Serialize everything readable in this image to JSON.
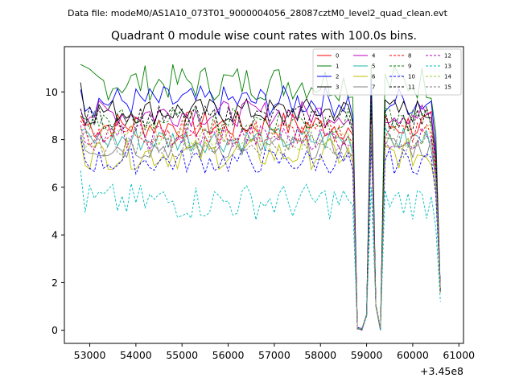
{
  "suptitle": "Data file: modeM0/AS1A10_073T01_9000004056_28087cztM0_level2_quad_clean.evt",
  "chart_data": {
    "type": "line",
    "title": "Quadrant 0 module wise count rates with 100.0s bins.",
    "xlabel": "",
    "ylabel": "",
    "x_offset_label": "+3.45e8",
    "xlim": [
      52450,
      61100
    ],
    "ylim": [
      -0.55,
      11.9
    ],
    "x_ticks": [
      53000,
      54000,
      55000,
      56000,
      57000,
      58000,
      59000,
      60000,
      61000
    ],
    "x_tick_labels": [
      "53000",
      "54000",
      "55000",
      "56000",
      "57000",
      "58000",
      "59000",
      "60000",
      "61000"
    ],
    "y_ticks": [
      0,
      2,
      4,
      6,
      8,
      10
    ],
    "y_tick_labels": [
      "0",
      "2",
      "4",
      "6",
      "8",
      "10"
    ],
    "x_start": 52800,
    "x_step": 100,
    "n_points": 79,
    "dip_indices": [
      59,
      60,
      61,
      62,
      63,
      64,
      65
    ],
    "dip_profile": [
      8.5,
      0.05,
      0.0,
      0.6,
      9.8,
      1.0,
      0.0
    ],
    "legend_location": "upper right",
    "series": [
      {
        "name": "0",
        "color": "#ff0000",
        "dash": "solid",
        "base": 8.6,
        "amp": 0.28,
        "start": 9.0,
        "end": 1.6
      },
      {
        "name": "1",
        "color": "#008000",
        "dash": "solid",
        "base": 10.4,
        "amp": 0.35,
        "start": 11.15,
        "end": 1.6
      },
      {
        "name": "2",
        "color": "#0000ff",
        "dash": "solid",
        "base": 9.6,
        "amp": 0.3,
        "start": 10.1,
        "end": 1.6
      },
      {
        "name": "3",
        "color": "#000000",
        "dash": "solid",
        "base": 9.2,
        "amp": 0.25,
        "start": 10.4,
        "end": 1.6
      },
      {
        "name": "4",
        "color": "#bf00bf",
        "dash": "solid",
        "base": 9.1,
        "amp": 0.25,
        "start": 9.3,
        "end": 1.6
      },
      {
        "name": "5",
        "color": "#20b2aa",
        "dash": "solid",
        "base": 8.0,
        "amp": 0.25,
        "start": 8.4,
        "end": 1.6
      },
      {
        "name": "6",
        "color": "#bfbf00",
        "dash": "solid",
        "base": 7.4,
        "amp": 0.3,
        "start": 8.0,
        "end": 1.6
      },
      {
        "name": "7",
        "color": "#808080",
        "dash": "solid",
        "base": 7.7,
        "amp": 0.25,
        "start": 8.2,
        "end": 1.6
      },
      {
        "name": "8",
        "color": "#ff0000",
        "dash": "dashed",
        "base": 8.3,
        "amp": 0.25,
        "start": 8.8,
        "end": 1.6
      },
      {
        "name": "9",
        "color": "#008000",
        "dash": "dashed",
        "base": 8.8,
        "amp": 0.25,
        "start": 9.0,
        "end": 1.6
      },
      {
        "name": "10",
        "color": "#0000ff",
        "dash": "dashed",
        "base": 7.1,
        "amp": 0.25,
        "start": 8.1,
        "end": 1.6
      },
      {
        "name": "11",
        "color": "#000000",
        "dash": "dashed",
        "base": 8.9,
        "amp": 0.25,
        "start": 9.3,
        "end": 1.6
      },
      {
        "name": "12",
        "color": "#bf00bf",
        "dash": "dashed",
        "base": 8.1,
        "amp": 0.25,
        "start": 8.6,
        "end": 1.6
      },
      {
        "name": "13",
        "color": "#00bfbf",
        "dash": "dashed",
        "base": 5.4,
        "amp": 0.35,
        "start": 6.7,
        "end": 1.2
      },
      {
        "name": "14",
        "color": "#9acd32",
        "dash": "dashed",
        "base": 8.1,
        "amp": 0.25,
        "start": 8.5,
        "end": 1.6
      },
      {
        "name": "15",
        "color": "#808080",
        "dash": "dashed",
        "base": 7.8,
        "amp": 0.25,
        "start": 8.1,
        "end": 1.6
      }
    ]
  }
}
